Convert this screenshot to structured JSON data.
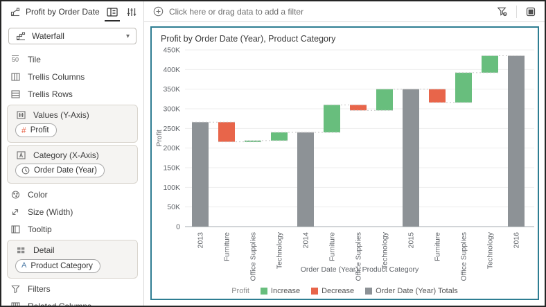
{
  "sidebar": {
    "title": "Profit by Order Date (Year), Pr...",
    "chart_type": {
      "value": "Waterfall",
      "icon": "waterfall-icon"
    },
    "items": [
      {
        "label": "Tile",
        "icon": "tile-icon"
      },
      {
        "label": "Trellis Columns",
        "icon": "trellis-columns-icon"
      },
      {
        "label": "Trellis Rows",
        "icon": "trellis-rows-icon"
      },
      {
        "label": "Values (Y-Axis)",
        "icon": "values-y-axis-icon",
        "chips": [
          {
            "label": "Profit",
            "icon": "number-icon"
          }
        ]
      },
      {
        "label": "Category (X-Axis)",
        "icon": "category-x-axis-icon",
        "chips": [
          {
            "label": "Order Date (Year)",
            "icon": "clock-icon"
          }
        ]
      },
      {
        "label": "Color",
        "icon": "color-icon"
      },
      {
        "label": "Size (Width)",
        "icon": "size-width-icon"
      },
      {
        "label": "Tooltip",
        "icon": "tooltip-icon"
      },
      {
        "label": "Detail",
        "icon": "detail-icon",
        "chips": [
          {
            "label": "Product Category",
            "icon": "text-attribute-icon"
          }
        ]
      },
      {
        "label": "Filters",
        "icon": "filters-icon"
      },
      {
        "label": "Related Columns",
        "icon": "related-columns-icon"
      }
    ],
    "header_icons": [
      "visualization-icon",
      "grammar-panel-icon",
      "properties-icon"
    ]
  },
  "filter_bar": {
    "placeholder": "Click here or drag data to add a filter",
    "left_icon": "add-filter-icon",
    "actions": [
      "filter-funnel-icon",
      "canvas-layout-icon"
    ]
  },
  "chart_data": {
    "type": "bar",
    "subtype": "waterfall",
    "title": "Profit by Order Date (Year), Product Category",
    "xlabel": "Order Date (Year), Product Category",
    "ylabel": "Profit",
    "ylim": [
      0,
      450000
    ],
    "ytick_step": 50000,
    "ytick_labels": [
      "0",
      "50K",
      "100K",
      "150K",
      "200K",
      "250K",
      "300K",
      "350K",
      "400K",
      "450K"
    ],
    "grid": true,
    "legend": {
      "position": "bottom",
      "title": "Profit",
      "items": [
        {
          "label": "Increase",
          "color": "#68BE7D"
        },
        {
          "label": "Decrease",
          "color": "#E8654A"
        },
        {
          "label": "Order Date (Year) Totals",
          "color": "#8D9296"
        }
      ]
    },
    "colors": {
      "increase": "#68BE7D",
      "decrease": "#E8654A",
      "total": "#8D9296"
    },
    "bars": [
      {
        "label": "2013",
        "type": "total",
        "start": 0,
        "end": 266000
      },
      {
        "label": "Furniture",
        "type": "decrease",
        "start": 266000,
        "end": 216000
      },
      {
        "label": "Office Supplies",
        "type": "increase",
        "start": 216000,
        "end": 219000
      },
      {
        "label": "Technology",
        "type": "increase",
        "start": 219000,
        "end": 240000
      },
      {
        "label": "2014",
        "type": "total",
        "start": 0,
        "end": 240000
      },
      {
        "label": "Furniture",
        "type": "increase",
        "start": 240000,
        "end": 310000
      },
      {
        "label": "Office Supplies",
        "type": "decrease",
        "start": 310000,
        "end": 296000
      },
      {
        "label": "Technology",
        "type": "increase",
        "start": 296000,
        "end": 350000
      },
      {
        "label": "2015",
        "type": "total",
        "start": 0,
        "end": 350000
      },
      {
        "label": "Furniture",
        "type": "decrease",
        "start": 350000,
        "end": 316000
      },
      {
        "label": "Office Supplies",
        "type": "increase",
        "start": 316000,
        "end": 392000
      },
      {
        "label": "Technology",
        "type": "increase",
        "start": 392000,
        "end": 435000
      },
      {
        "label": "2016",
        "type": "total",
        "start": 0,
        "end": 435000
      }
    ]
  }
}
